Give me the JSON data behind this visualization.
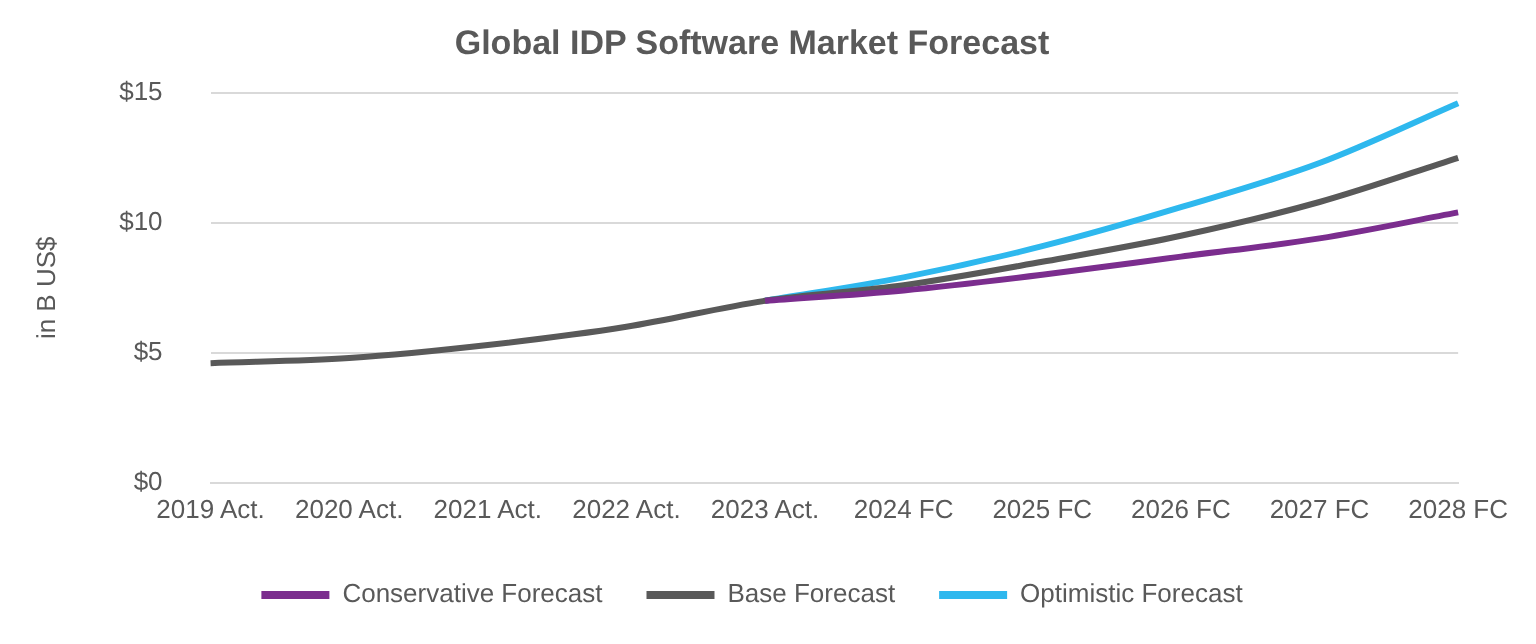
{
  "chart_data": {
    "type": "line",
    "title": "Global IDP Software Market Forecast",
    "ylabel": "in B US$",
    "categories": [
      "2019 Act.",
      "2020 Act.",
      "2021 Act.",
      "2022 Act.",
      "2023 Act.",
      "2024 FC",
      "2025 FC",
      "2026 FC",
      "2027 FC",
      "2028 FC"
    ],
    "series": [
      {
        "name": "Conservative Forecast",
        "color": "#7b2d8e",
        "values": [
          null,
          null,
          null,
          null,
          7.0,
          7.4,
          8.0,
          8.7,
          9.4,
          10.4
        ]
      },
      {
        "name": "Base Forecast",
        "color": "#595959",
        "values": [
          4.6,
          4.8,
          5.3,
          6.0,
          7.0,
          7.6,
          8.5,
          9.5,
          10.8,
          12.5
        ]
      },
      {
        "name": "Optimistic Forecast",
        "color": "#2eb8ee",
        "values": [
          null,
          null,
          null,
          null,
          7.0,
          7.9,
          9.1,
          10.6,
          12.3,
          14.6
        ]
      }
    ],
    "ylim": [
      0,
      15
    ],
    "yticks": [
      {
        "value": 0,
        "label": "$0"
      },
      {
        "value": 5,
        "label": "$5"
      },
      {
        "value": 10,
        "label": "$10"
      },
      {
        "value": 15,
        "label": "$15"
      }
    ],
    "grid": "y",
    "legend": "bottom",
    "marker": "none",
    "line_style": "solid"
  }
}
